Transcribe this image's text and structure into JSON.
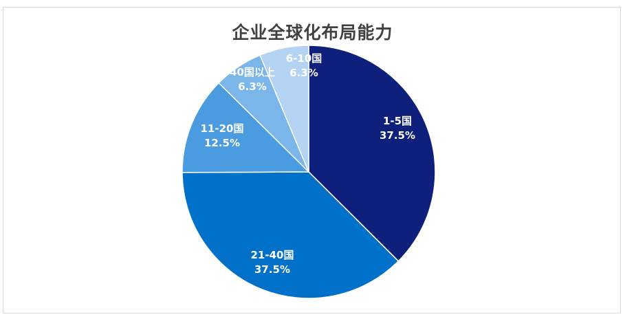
{
  "chart_data": {
    "type": "pie",
    "title": "企业全球化布局能力",
    "slices": [
      {
        "label": "1-5国",
        "value": 37.5,
        "value_label": "37.5%",
        "color": "#0e1f7c",
        "text_color": "#ffffff"
      },
      {
        "label": "21-40国",
        "value": 37.5,
        "value_label": "37.5%",
        "color": "#0070c9",
        "text_color": "#ffffff"
      },
      {
        "label": "11-20国",
        "value": 12.5,
        "value_label": "12.5%",
        "color": "#4a9be0",
        "text_color": "#ffffff"
      },
      {
        "label": "40国以上",
        "value": 6.3,
        "value_label": "6.3%",
        "color": "#7ab6ea",
        "text_color": "#ffffff"
      },
      {
        "label": "6-10国",
        "value": 6.3,
        "value_label": "6.3%",
        "color": "#b4d3f2",
        "text_color": "#ffffff"
      }
    ],
    "start_angle": "12 o'clock",
    "direction": "clockwise",
    "legend": "none"
  }
}
